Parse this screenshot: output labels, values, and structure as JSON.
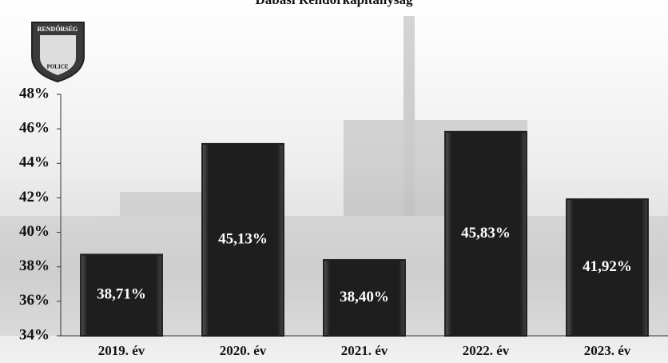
{
  "chart_data": {
    "type": "bar",
    "title": "Dabasi Rendőrkapitányság",
    "logo": {
      "top": "RENDŐRSÉG",
      "bottom": "POLICE"
    },
    "categories": [
      "2019. év",
      "2020. év",
      "2021. év",
      "2022. év",
      "2023. év"
    ],
    "values": [
      38.71,
      45.13,
      38.4,
      45.83,
      41.92
    ],
    "value_labels": [
      "38,71%",
      "45,13%",
      "38,40%",
      "45,83%",
      "41,92%"
    ],
    "color": "#1e1e1e",
    "ylim": [
      34,
      48
    ],
    "yticks": [
      {
        "value": 34,
        "label": "34%"
      },
      {
        "value": 36,
        "label": "36%"
      },
      {
        "value": 38,
        "label": "38%"
      },
      {
        "value": 40,
        "label": "40%"
      },
      {
        "value": 42,
        "label": "42%"
      },
      {
        "value": 44,
        "label": "44%"
      },
      {
        "value": 46,
        "label": "46%"
      },
      {
        "value": 48,
        "label": "48%"
      }
    ],
    "grid": false
  }
}
